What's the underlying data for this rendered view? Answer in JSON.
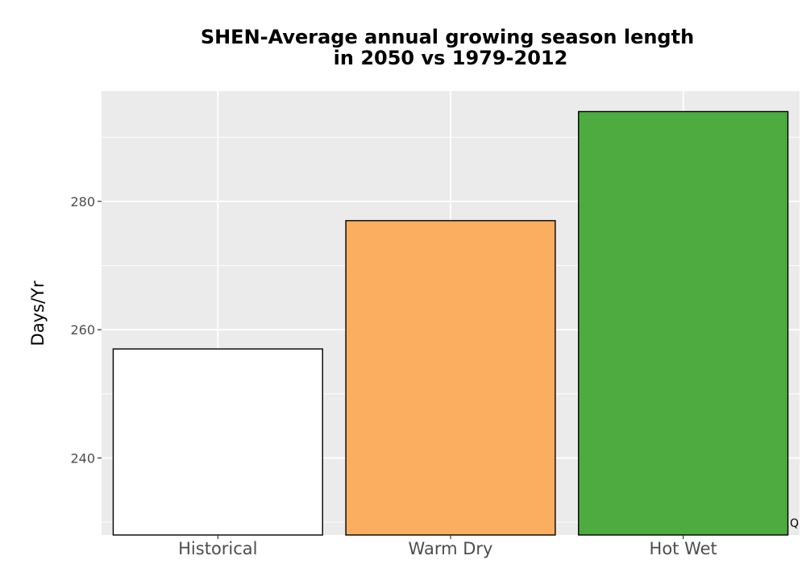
{
  "chart_data": {
    "type": "bar",
    "title_lines": [
      "SHEN-Average annual growing season length",
      "in 2050 vs 1979-2012"
    ],
    "xlabel": "",
    "ylabel": "Days/Yr",
    "categories": [
      "Historical",
      "Warm Dry",
      "Hot Wet"
    ],
    "values": [
      257,
      277,
      294
    ],
    "colors": [
      "#ffffff",
      "#fcae60",
      "#4dab40"
    ],
    "bar_outline_color": "#000000",
    "ylim": [
      228,
      297.2
    ],
    "yticks": [
      240,
      260,
      280
    ],
    "grid": true,
    "panel_background": "#ebebeb",
    "legend": "none"
  },
  "corner_mark": "Q"
}
